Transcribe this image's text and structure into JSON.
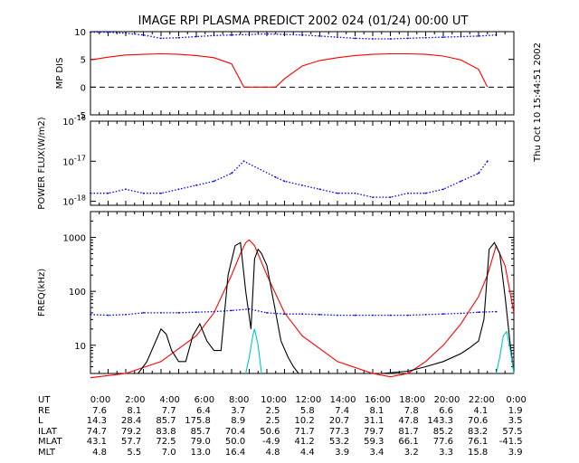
{
  "title": "IMAGE  RPI PLASMA PREDICT 2002 024 (01/24) 00:00 UT",
  "side_label": "Thu Oct 10 15:44:51 2002",
  "colors": {
    "red": "#ff0000",
    "blue": "#0000ff",
    "black": "#000000",
    "cyan": "#00c8c8"
  },
  "chart_data": [
    {
      "type": "line",
      "panel": "mp_dis",
      "ylabel": "MP DIS",
      "xlim": [
        0,
        24
      ],
      "ylim": [
        -5,
        10
      ],
      "yticks": [
        "10",
        "5",
        "0",
        "-5"
      ],
      "ytick_values": [
        10,
        5,
        0,
        -5
      ],
      "reference_line": {
        "y": 0,
        "style": "dashed"
      },
      "series": [
        {
          "color": "blue",
          "style": "dotted",
          "x": [
            0,
            1,
            2,
            3,
            4,
            5,
            6,
            7,
            8,
            9,
            10,
            11,
            12,
            13,
            14,
            15,
            16,
            17,
            18,
            19,
            20,
            21,
            22,
            23
          ],
          "y": [
            9.9,
            9.9,
            9.7,
            9.4,
            8.8,
            8.9,
            9.1,
            9.3,
            9.4,
            9.5,
            9.6,
            9.5,
            9.4,
            9.2,
            9.0,
            8.8,
            8.7,
            8.7,
            8.8,
            8.9,
            9.0,
            9.1,
            9.2,
            9.4
          ]
        },
        {
          "color": "red",
          "style": "solid",
          "x": [
            0,
            1,
            2,
            3,
            4,
            5,
            6,
            7,
            8,
            8.7,
            10.5,
            11,
            12,
            13,
            14,
            15,
            16,
            17,
            18,
            19,
            20,
            21,
            22,
            22.5
          ],
          "y": [
            4.9,
            5.4,
            5.8,
            5.9,
            6.0,
            5.9,
            5.7,
            5.3,
            4.2,
            0,
            0,
            1.5,
            3.8,
            4.8,
            5.3,
            5.7,
            5.9,
            6.0,
            6.0,
            5.9,
            5.6,
            4.9,
            3.2,
            0
          ]
        }
      ]
    },
    {
      "type": "scatter",
      "panel": "power_flux",
      "ylabel": "POWER FLUX(W/m2)",
      "xlim": [
        0,
        24
      ],
      "ylim": [
        -18.1,
        -16
      ],
      "yscale": "log",
      "yticks": [
        "10-16",
        "10-17",
        "10-18"
      ],
      "ytick_values": [
        -16,
        -17,
        -18
      ],
      "series": [
        {
          "color": "blue",
          "style": "dotted",
          "x": [
            0,
            1,
            2,
            3,
            4,
            5,
            6,
            7,
            8,
            8.7,
            10.5,
            11,
            12,
            13,
            14,
            15,
            16,
            17,
            18,
            19,
            20,
            21,
            22,
            22.5
          ],
          "y": [
            -17.8,
            -17.8,
            -17.7,
            -17.8,
            -17.8,
            -17.7,
            -17.6,
            -17.5,
            -17.3,
            -17.0,
            -17.4,
            -17.5,
            -17.6,
            -17.7,
            -17.8,
            -17.8,
            -17.9,
            -17.9,
            -17.8,
            -17.8,
            -17.7,
            -17.5,
            -17.3,
            -17.0
          ]
        }
      ]
    },
    {
      "type": "line",
      "panel": "freq",
      "ylabel": "FREQ(kHz)",
      "xlim": [
        0,
        24
      ],
      "ylim": [
        3,
        3000
      ],
      "yscale": "log",
      "yticks": [
        "1000",
        "100",
        "10"
      ],
      "ytick_values": [
        1000,
        100,
        10
      ],
      "series": [
        {
          "color": "blue",
          "style": "dotted",
          "x": [
            0,
            1,
            2,
            3,
            4,
            5,
            6,
            7,
            8,
            9,
            10,
            11,
            12,
            13,
            14,
            15,
            16,
            17,
            18,
            19,
            20,
            21,
            22,
            23
          ],
          "y": [
            37,
            36,
            37,
            40,
            40,
            40,
            41,
            42,
            44,
            47,
            40,
            38,
            38,
            37,
            36,
            36,
            36,
            36,
            36,
            37,
            38,
            39,
            41,
            42
          ]
        },
        {
          "color": "red",
          "style": "solid",
          "x": [
            0,
            2,
            4,
            6,
            7,
            8,
            8.5,
            8.8,
            9,
            9.3,
            10,
            11,
            12,
            14,
            16,
            17,
            18,
            19,
            20,
            21,
            22,
            22.5,
            23,
            23.5,
            24
          ],
          "y": [
            2.5,
            3,
            5,
            15,
            40,
            200,
            500,
            800,
            900,
            700,
            200,
            40,
            15,
            5,
            3,
            2.6,
            3,
            5,
            10,
            25,
            80,
            200,
            700,
            300,
            40
          ]
        },
        {
          "color": "black",
          "style": "solid",
          "x": [
            2.7,
            3.2,
            3.7,
            4.0,
            4.3,
            4.6,
            5.0,
            5.4,
            5.8,
            6.2,
            6.6,
            7.0,
            7.4,
            7.8,
            8.2,
            8.5,
            8.8,
            9.1,
            9.3,
            9.5,
            9.7,
            10.0,
            10.4,
            10.8,
            11.2,
            11.5,
            11.8
          ],
          "y": [
            3,
            5,
            12,
            20,
            16,
            8,
            5,
            5,
            15,
            25,
            12,
            8,
            8,
            200,
            700,
            800,
            100,
            20,
            400,
            600,
            500,
            300,
            60,
            12,
            6,
            4,
            3
          ]
        },
        {
          "color": "black",
          "style": "solid",
          "x": [
            16.5,
            18,
            19,
            20,
            21,
            21.5,
            22,
            22.3,
            22.6,
            22.9,
            23.2,
            23.5,
            23.8,
            24
          ],
          "y": [
            3,
            3.3,
            4,
            5,
            7,
            9,
            12,
            30,
            600,
            800,
            500,
            80,
            10,
            3
          ]
        },
        {
          "color": "cyan",
          "style": "solid",
          "x": [
            8.8,
            9.0,
            9.2,
            9.3,
            9.5,
            9.7
          ],
          "y": [
            3,
            6,
            15,
            20,
            10,
            3
          ]
        },
        {
          "color": "cyan",
          "style": "solid",
          "x": [
            23.0,
            23.2,
            23.4,
            23.6,
            23.8,
            24.0
          ],
          "y": [
            3,
            6,
            15,
            18,
            8,
            3
          ]
        }
      ]
    },
    {
      "type": "table",
      "panel": "ephemeris",
      "row_labels": [
        "UT",
        "RE",
        "L",
        "ILAT",
        "MLAT",
        "MLT"
      ],
      "rows": [
        [
          "0:00",
          "2:00",
          "4:00",
          "6:00",
          "8:00",
          "10:00",
          "12:00",
          "14:00",
          "16:00",
          "18:00",
          "20:00",
          "22:00",
          "0:00"
        ],
        [
          "7.6",
          "8.1",
          "7.7",
          "6.4",
          "3.7",
          "2.5",
          "5.8",
          "7.4",
          "8.1",
          "7.8",
          "6.6",
          "4.1",
          "1.9"
        ],
        [
          "14.3",
          "28.4",
          "85.7",
          "175.8",
          "8.9",
          "2.5",
          "10.2",
          "20.7",
          "31.1",
          "47.8",
          "143.3",
          "70.6",
          "3.5"
        ],
        [
          "74.7",
          "79.2",
          "83.8",
          "85.7",
          "70.4",
          "50.6",
          "71.7",
          "77.3",
          "79.7",
          "81.7",
          "85.2",
          "83.2",
          "57.5"
        ],
        [
          "43.1",
          "57.7",
          "72.5",
          "79.0",
          "50.0",
          "-4.9",
          "41.2",
          "53.2",
          "59.3",
          "66.1",
          "77.6",
          "76.1",
          "-41.5"
        ],
        [
          "4.8",
          "5.5",
          "7.0",
          "13.0",
          "16.4",
          "4.8",
          "4.4",
          "3.9",
          "3.4",
          "3.2",
          "3.3",
          "15.8",
          "3.9"
        ]
      ]
    }
  ]
}
